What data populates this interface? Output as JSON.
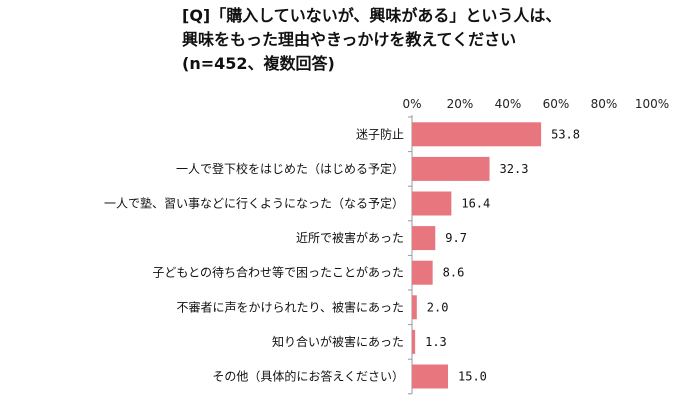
{
  "title": {
    "line1": "[Q]「購入していないが、興味がある」という人は、",
    "line2": "興味をもった理由やきっかけを教えてください",
    "line3": "(n=452、複数回答)"
  },
  "colors": {
    "bar": "#e8767e",
    "axis": "#9a9a9a",
    "text": "#111111"
  },
  "chart_data": {
    "type": "bar",
    "orientation": "horizontal",
    "categories": [
      "迷子防止",
      "一人で登下校をはじめた（はじめる予定）",
      "一人で塾、習い事などに行くようになった（なる予定）",
      "近所で被害があった",
      "子どもとの待ち合わせ等で困ったことがあった",
      "不審者に声をかけられたり、被害にあった",
      "知り合いが被害にあった",
      "その他（具体的にお答えください）"
    ],
    "values": [
      53.8,
      32.3,
      16.4,
      9.7,
      8.6,
      2.0,
      1.3,
      15.0
    ],
    "value_labels": [
      "53.8",
      "32.3",
      "16.4",
      "9.7",
      "8.6",
      "2.0",
      "1.3",
      "15.0"
    ],
    "xlim": [
      0,
      100
    ],
    "x_ticks": [
      "0%",
      "20%",
      "40%",
      "60%",
      "80%",
      "100%"
    ],
    "grid": false
  }
}
